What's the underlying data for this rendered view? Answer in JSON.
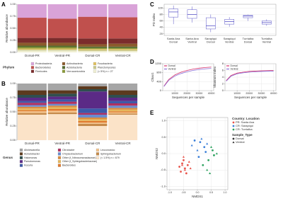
{
  "chart_data": [
    {
      "type": "stacked_bar",
      "panel_label": "A",
      "y_label": "Relative abundance",
      "legend_title": "Phylum",
      "categories": [
        "Dorsal-PR",
        "Ventral-PR",
        "Dorsal-CR",
        "Ventral-CR"
      ],
      "ylim": [
        0,
        1
      ],
      "yticks": [
        {
          "value": 0,
          "label": "0.00"
        },
        0.25,
        {
          "value": 0.5,
          "label": "0.50"
        },
        0.75,
        {
          "value": 1,
          "label": "1.00"
        }
      ],
      "series": [
        {
          "name": "Proteobacteria",
          "color": "#d9a3d8",
          "values": [
            0.28,
            0.3,
            0.26,
            0.27
          ]
        },
        {
          "name": "Bacteroidetes",
          "color": "#c0504d",
          "values": [
            0.42,
            0.4,
            0.45,
            0.44
          ]
        },
        {
          "name": "Firmicutes",
          "color": "#7b2c2c",
          "values": [
            0.1,
            0.1,
            0.12,
            0.11
          ]
        },
        {
          "name": "Actinobacteria",
          "color": "#8b5a2b",
          "values": [
            0.06,
            0.06,
            0.05,
            0.06
          ]
        },
        {
          "name": "Acidobacteria",
          "color": "#556b2f",
          "values": [
            0.03,
            0.03,
            0.03,
            0.03
          ]
        },
        {
          "name": "Verrucomicrobia",
          "color": "#8a9a3a",
          "values": [
            0.03,
            0.03,
            0.02,
            0.02
          ]
        },
        {
          "name": "Fusobacteria",
          "color": "#e0c060",
          "values": [
            0.02,
            0.02,
            0.02,
            0.02
          ]
        },
        {
          "name": "Planctomycetes",
          "color": "#c7c78a",
          "values": [
            0.02,
            0.02,
            0.02,
            0.02
          ]
        },
        {
          "name": "(< 5%) n = 27",
          "color": "#efeed2",
          "values": [
            0.04,
            0.04,
            0.03,
            0.03
          ]
        }
      ]
    },
    {
      "type": "stacked_bar",
      "panel_label": "B",
      "y_label": "Relative abundance",
      "legend_title": "Genus",
      "categories": [
        "Dorsal-PR",
        "Ventral-PR",
        "Dorsal-CR",
        "Ventral-CR"
      ],
      "ylim": [
        0,
        1
      ],
      "yticks": [
        {
          "value": 0,
          "label": "0.00"
        },
        0.25,
        {
          "value": 0.5,
          "label": "0.50"
        },
        0.75,
        {
          "value": 1,
          "label": "1.00"
        }
      ],
      "series": [
        {
          "name": "Alishewanella",
          "color": "#a6a6a6",
          "values": [
            0.12,
            0.12,
            0.05,
            0.12
          ]
        },
        {
          "name": "Acinetobacter",
          "color": "#5c3a1e",
          "values": [
            0.08,
            0.06,
            0.05,
            0.08
          ]
        },
        {
          "name": "Halomonas",
          "color": "#2f4f4f",
          "values": [
            0.05,
            0.05,
            0.04,
            0.05
          ]
        },
        {
          "name": "Pseudomonas",
          "color": "#5b2a86",
          "values": [
            0.06,
            0.05,
            0.3,
            0.06
          ]
        },
        {
          "name": "Kocuria",
          "color": "#3d5aa8",
          "values": [
            0.03,
            0.04,
            0.08,
            0.04
          ]
        },
        {
          "name": "Citrobacter",
          "color": "#b03060",
          "values": [
            0.04,
            0.04,
            0.03,
            0.04
          ]
        },
        {
          "name": "Chryseobacterium",
          "color": "#6a8ccf",
          "values": [
            0.03,
            0.03,
            0.05,
            0.04
          ]
        },
        {
          "name": "Other (f_Nitrosomonadaceae)",
          "color": "#d98c3f",
          "values": [
            0.03,
            0.03,
            0.03,
            0.03
          ]
        },
        {
          "name": "Other (f_Sphingobacteriaceae)",
          "color": "#e6b85c",
          "values": [
            0.03,
            0.03,
            0.03,
            0.03
          ]
        },
        {
          "name": "Bacteroides",
          "color": "#e07a2f",
          "values": [
            0.02,
            0.03,
            0.03,
            0.02
          ]
        },
        {
          "name": "Leuconostoc",
          "color": "#f2c28a",
          "values": [
            0.03,
            0.03,
            0.02,
            0.02
          ]
        },
        {
          "name": "Sphingobacterium",
          "color": "#c58a4a",
          "values": [
            0.03,
            0.03,
            0.04,
            0.02
          ]
        },
        {
          "name": "(< 1.5%) n = 679",
          "color": "#fbe3c8",
          "values": [
            0.45,
            0.46,
            0.25,
            0.45
          ]
        }
      ]
    },
    {
      "type": "box",
      "panel_label": "C",
      "y_label": "PD Index",
      "color": "#5a55c8",
      "categories": [
        [
          "Santa Ana",
          "Dorsal"
        ],
        [
          "Santa Ana",
          "Ventral"
        ],
        [
          "Sarapiqui",
          "Dorsal"
        ],
        [
          "Sarapiqui",
          "Ventral"
        ],
        [
          "Turrialba",
          "Dorsal"
        ],
        [
          "Turrialba",
          "Ventral"
        ]
      ],
      "ylim": [
        15,
        112
      ],
      "yticks": [
        20,
        40,
        60,
        80,
        100
      ],
      "grid": true,
      "min": [
        50,
        55,
        25,
        42,
        60,
        45
      ],
      "q1": [
        72,
        68,
        35,
        50,
        70,
        50
      ],
      "median": [
        88,
        80,
        45,
        58,
        75,
        55
      ],
      "q3": [
        97,
        95,
        70,
        65,
        78,
        60
      ],
      "max": [
        108,
        105,
        80,
        72,
        80,
        65
      ]
    },
    {
      "type": "line",
      "panel_label": "D",
      "y_label": "Chao1",
      "x_label": "Sequences per sample",
      "grid": true,
      "legend_loc": "upper-left",
      "x": [
        1000,
        5000,
        10000,
        15000,
        20000,
        25000,
        30000,
        35000,
        40000
      ],
      "xlim": [
        0,
        42000
      ],
      "xticks": [
        10000,
        20000,
        30000,
        40000
      ],
      "ylim": [
        0,
        1200
      ],
      "yticks": [
        0,
        400,
        800,
        1200
      ],
      "series": [
        {
          "name": "Dorsal",
          "color": "#d6336c",
          "values": [
            200,
            500,
            700,
            820,
            900,
            960,
            1000,
            1030,
            1050
          ]
        },
        {
          "name": "Ventral",
          "color": "#8a6fd8",
          "values": [
            180,
            460,
            650,
            760,
            840,
            900,
            940,
            970,
            990
          ]
        }
      ]
    },
    {
      "type": "line",
      "y_label": "Shannon Index",
      "x_label": "Sequences per sample",
      "grid": true,
      "legend_loc": "upper-left",
      "x": [
        1000,
        5000,
        10000,
        15000,
        20000,
        25000,
        30000,
        35000,
        40000
      ],
      "xlim": [
        0,
        42000
      ],
      "xticks": [
        10000,
        20000,
        30000,
        40000
      ],
      "ylim": [
        0,
        8
      ],
      "yticks": [
        0,
        2,
        4,
        6,
        8
      ],
      "series": [
        {
          "name": "Dorsal",
          "color": "#d6336c",
          "values": [
            3,
            4.5,
            5.2,
            5.5,
            5.7,
            5.8,
            5.9,
            5.95,
            6
          ]
        },
        {
          "name": "Ventral",
          "color": "#8a6fd8",
          "values": [
            2.8,
            4.3,
            5.0,
            5.3,
            5.5,
            5.6,
            5.7,
            5.75,
            5.8
          ]
        }
      ]
    },
    {
      "type": "scatter",
      "panel_label": "E",
      "x_label": "NMDS1",
      "y_label": "NMDS2",
      "grid": true,
      "xlim": [
        -1.1,
        1.1
      ],
      "xticks": [
        {
          "value": -1,
          "label": "-1.0"
        },
        {
          "value": -0.5,
          "label": "-0.5"
        },
        {
          "value": 0,
          "label": "0.0"
        },
        {
          "value": 0.5,
          "label": "0.5"
        },
        {
          "value": 1,
          "label": "1.0"
        }
      ],
      "ylim": [
        -1.1,
        1.1
      ],
      "yticks": [
        {
          "value": -1,
          "label": "-1.0"
        },
        {
          "value": -0.5,
          "label": "-0.5"
        },
        {
          "value": 0,
          "label": "0.0"
        },
        {
          "value": 0.5,
          "label": "0.5"
        },
        {
          "value": 1,
          "label": "1.0"
        }
      ],
      "legend": {
        "color_title": "Country: Location",
        "color_items": [
          {
            "name": "PR: Santa Ana",
            "color": "#e8534a"
          },
          {
            "name": "CR: Sarapiqui",
            "color": "#3b7fd9"
          },
          {
            "name": "CR: Turrialba",
            "color": "#2ca25f"
          }
        ],
        "shape_title": "Sample_Type",
        "shape_items": [
          {
            "name": "Dorsal",
            "marker": "circle"
          },
          {
            "name": "Ventral",
            "marker": "triangle"
          }
        ]
      },
      "series": [
        {
          "color": "#e8534a",
          "marker": "circle",
          "x": [
            -0.55,
            -0.45,
            -0.6,
            -0.35,
            -0.5,
            -0.4,
            -0.65
          ],
          "y": [
            -0.3,
            -0.45,
            -0.55,
            -0.35,
            -0.2,
            -0.6,
            -0.4
          ]
        },
        {
          "color": "#e8534a",
          "marker": "triangle",
          "x": [
            -0.5,
            -0.3,
            -0.45,
            -0.55,
            -0.25
          ],
          "y": [
            -0.1,
            -0.25,
            -0.5,
            -0.35,
            -0.45
          ]
        },
        {
          "color": "#3b7fd9",
          "marker": "circle",
          "x": [
            0.1,
            0.25,
            -0.1,
            0.3,
            0.05
          ],
          "y": [
            0.35,
            0.2,
            0.4,
            0.05,
            -0.1
          ]
        },
        {
          "color": "#3b7fd9",
          "marker": "triangle",
          "x": [
            -0.2,
            0.15,
            0.35,
            0.0
          ],
          "y": [
            0.25,
            0.45,
            0.3,
            0.1
          ]
        },
        {
          "color": "#2ca25f",
          "marker": "circle",
          "x": [
            0.4,
            0.55,
            0.2,
            0.6
          ],
          "y": [
            -0.2,
            0.1,
            -0.35,
            -0.05
          ]
        },
        {
          "color": "#2ca25f",
          "marker": "triangle",
          "x": [
            0.5,
            0.35,
            0.7,
            0.45
          ],
          "y": [
            0.2,
            -0.5,
            0.0,
            -0.6
          ]
        }
      ]
    }
  ]
}
